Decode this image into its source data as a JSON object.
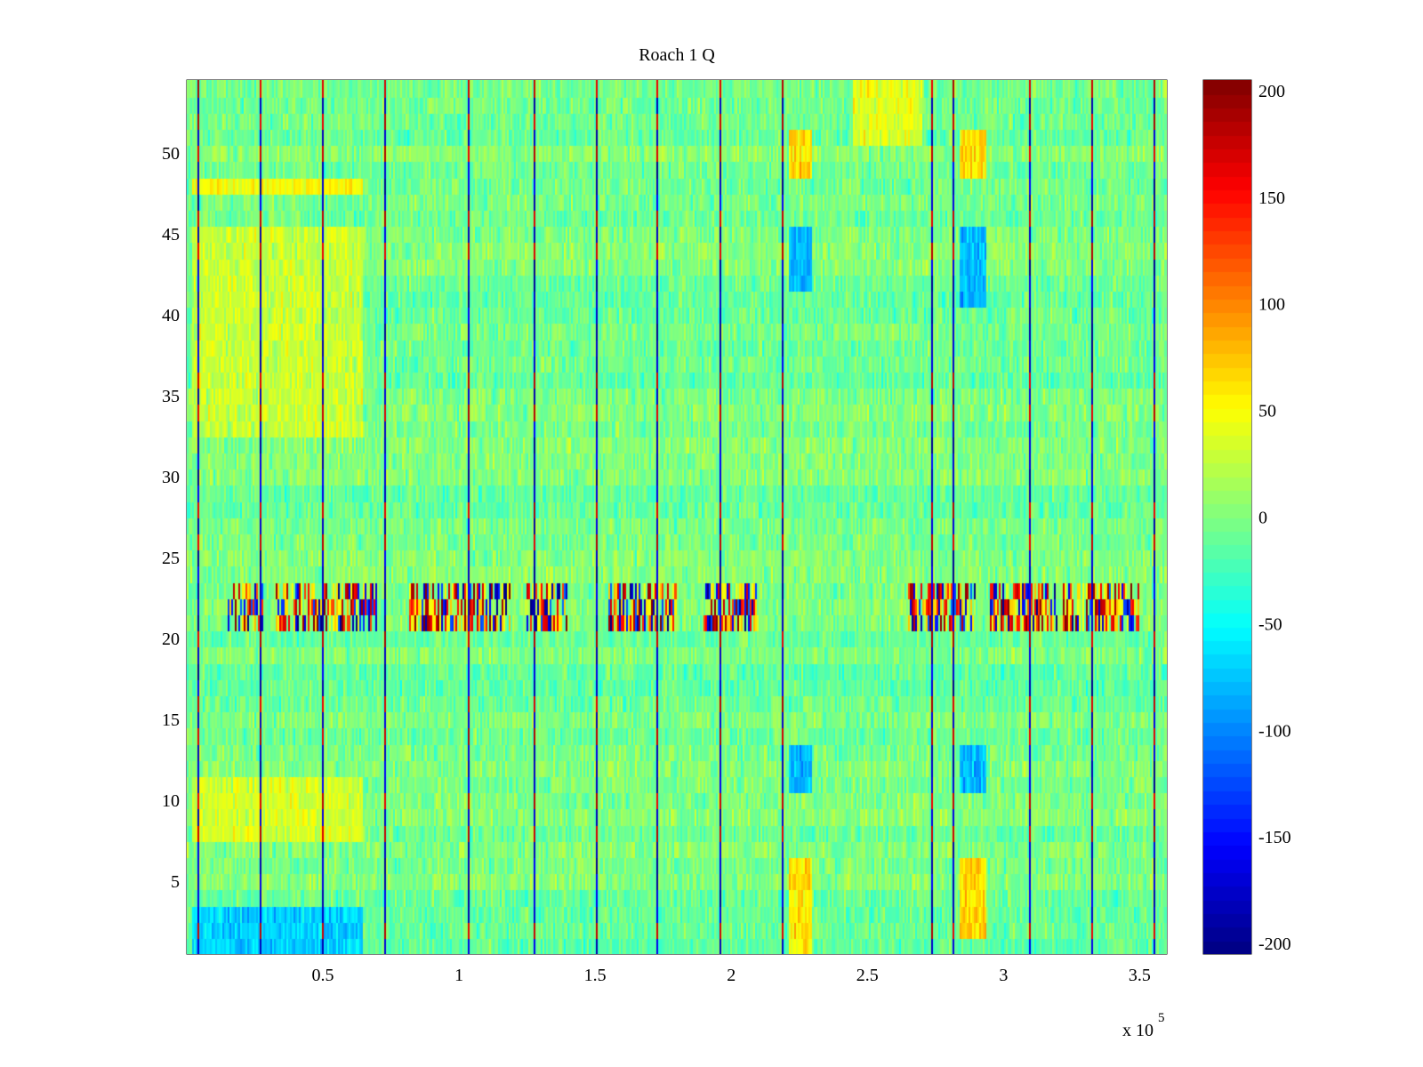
{
  "chart_data": {
    "type": "heatmap",
    "title": "Roach 1 Q",
    "xlabel": "",
    "ylabel": "",
    "colormap": "jet",
    "xlim": [
      0,
      360000
    ],
    "ylim": [
      0.5,
      54.5
    ],
    "clim": [
      -205,
      205
    ],
    "x_ticks": [
      0.5,
      1,
      1.5,
      2,
      2.5,
      3,
      3.5
    ],
    "x_tick_labels": [
      "0.5",
      "1",
      "1.5",
      "2",
      "2.5",
      "3",
      "3.5"
    ],
    "x_exponent_base": "x 10",
    "x_exponent_power": "5",
    "y_ticks": [
      5,
      10,
      15,
      20,
      25,
      30,
      35,
      40,
      45,
      50
    ],
    "y_tick_labels": [
      "5",
      "10",
      "15",
      "20",
      "25",
      "30",
      "35",
      "40",
      "45",
      "50"
    ],
    "colorbar_ticks": [
      200,
      150,
      100,
      50,
      0,
      -50,
      -100,
      -150,
      -200
    ],
    "colorbar_tick_labels": [
      "200",
      "150",
      "100",
      "50",
      "0",
      "-50",
      "-100",
      "-150",
      "-200"
    ],
    "rows": 54,
    "background_mean": -5,
    "background_noise": 22,
    "stripes_x": [
      4000,
      27000,
      50000,
      73000,
      104000,
      128000,
      151000,
      173000,
      196000,
      219000,
      274000,
      282000,
      310000,
      333000,
      356000
    ],
    "stripes_strong_rows": [
      [
        1,
        3
      ],
      [
        7,
        10
      ],
      [
        13,
        16
      ],
      [
        19,
        20
      ],
      [
        26,
        28
      ],
      [
        34,
        36
      ],
      [
        44,
        46
      ],
      [
        50,
        54
      ]
    ],
    "stripe_peak_value": 190,
    "burst_rows": [
      21,
      22,
      23
    ],
    "burst_segments": [
      [
        15000,
        28000
      ],
      [
        33000,
        70000
      ],
      [
        82000,
        120000
      ],
      [
        125000,
        140000
      ],
      [
        155000,
        180000
      ],
      [
        190000,
        210000
      ],
      [
        265000,
        290000
      ],
      [
        295000,
        320000
      ],
      [
        322000,
        350000
      ]
    ],
    "regions": [
      {
        "x": [
          2000,
          65000
        ],
        "y": [
          1,
          3
        ],
        "value": -70
      },
      {
        "x": [
          2000,
          65000
        ],
        "y": [
          8,
          11
        ],
        "value": 35
      },
      {
        "x": [
          2000,
          65000
        ],
        "y": [
          33,
          45
        ],
        "value": 30
      },
      {
        "x": [
          2000,
          65000
        ],
        "y": [
          48,
          48
        ],
        "value": 50
      },
      {
        "x": [
          221000,
          230000
        ],
        "y": [
          1,
          6
        ],
        "value": 60
      },
      {
        "x": [
          221000,
          230000
        ],
        "y": [
          11,
          13
        ],
        "value": -80
      },
      {
        "x": [
          221000,
          230000
        ],
        "y": [
          42,
          45
        ],
        "value": -80
      },
      {
        "x": [
          221000,
          230000
        ],
        "y": [
          49,
          51
        ],
        "value": 65
      },
      {
        "x": [
          284000,
          294000
        ],
        "y": [
          2,
          6
        ],
        "value": 65
      },
      {
        "x": [
          284000,
          294000
        ],
        "y": [
          11,
          13
        ],
        "value": -80
      },
      {
        "x": [
          284000,
          294000
        ],
        "y": [
          41,
          45
        ],
        "value": -80
      },
      {
        "x": [
          284000,
          294000
        ],
        "y": [
          49,
          51
        ],
        "value": 65
      },
      {
        "x": [
          245000,
          270000
        ],
        "y": [
          51,
          54
        ],
        "value": 40
      }
    ]
  }
}
